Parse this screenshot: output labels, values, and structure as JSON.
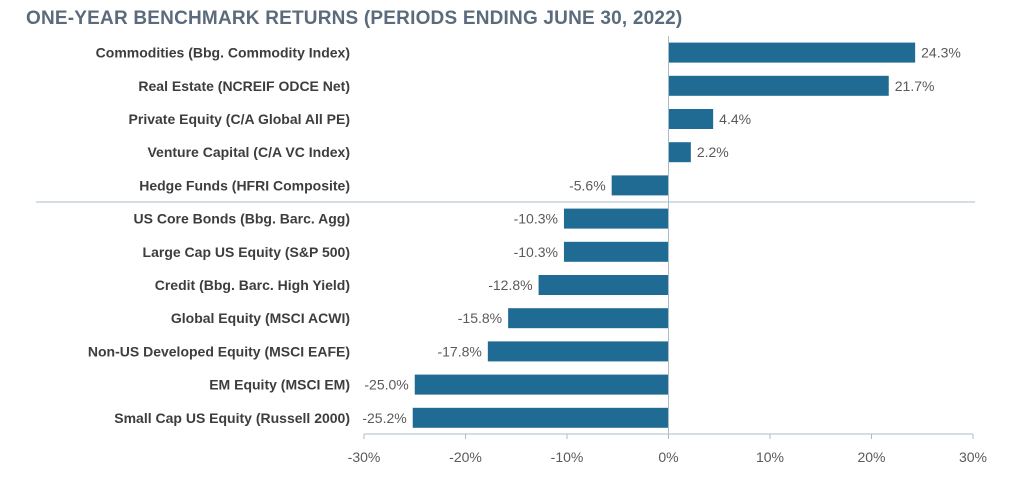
{
  "chart_data": {
    "type": "bar",
    "orientation": "horizontal",
    "title": "ONE-YEAR BENCHMARK RETURNS (PERIODS ENDING JUNE 30, 2022)",
    "categories": [
      "Commodities (Bbg. Commodity Index)",
      "Real Estate (NCREIF ODCE Net)",
      "Private Equity (C/A Global All PE)",
      "Venture Capital (C/A VC Index)",
      "Hedge Funds (HFRI Composite)",
      "US Core Bonds (Bbg. Barc. Agg)",
      "Large Cap US Equity (S&P 500)",
      "Credit (Bbg. Barc. High Yield)",
      "Global Equity (MSCI ACWI)",
      "Non-US Developed Equity (MSCI EAFE)",
      "EM Equity (MSCI EM)",
      "Small Cap US Equity (Russell 2000)"
    ],
    "values": [
      24.3,
      21.7,
      4.4,
      2.2,
      -5.6,
      -10.3,
      -10.3,
      -12.8,
      -15.8,
      -17.8,
      -25.0,
      -25.2
    ],
    "value_labels": [
      "24.3%",
      "21.7%",
      "4.4%",
      "2.2%",
      "-5.6%",
      "-10.3%",
      "-10.3%",
      "-12.8%",
      "-15.8%",
      "-17.8%",
      "-25.0%",
      "-25.2%"
    ],
    "xlim": [
      -30,
      30
    ],
    "xticks": [
      -30,
      -20,
      -10,
      0,
      10,
      20,
      30
    ],
    "xtick_labels": [
      "-30%",
      "-20%",
      "-10%",
      "0%",
      "10%",
      "20%",
      "30%"
    ],
    "separator_after_index": 4,
    "grid": false,
    "legend": "none",
    "bar_color": "#1f6b94",
    "axis_color": "#a9bcc8",
    "text_color": "#3d3d3d",
    "label_color": "#5a5a5a",
    "title_color": "#5b6b7c"
  }
}
